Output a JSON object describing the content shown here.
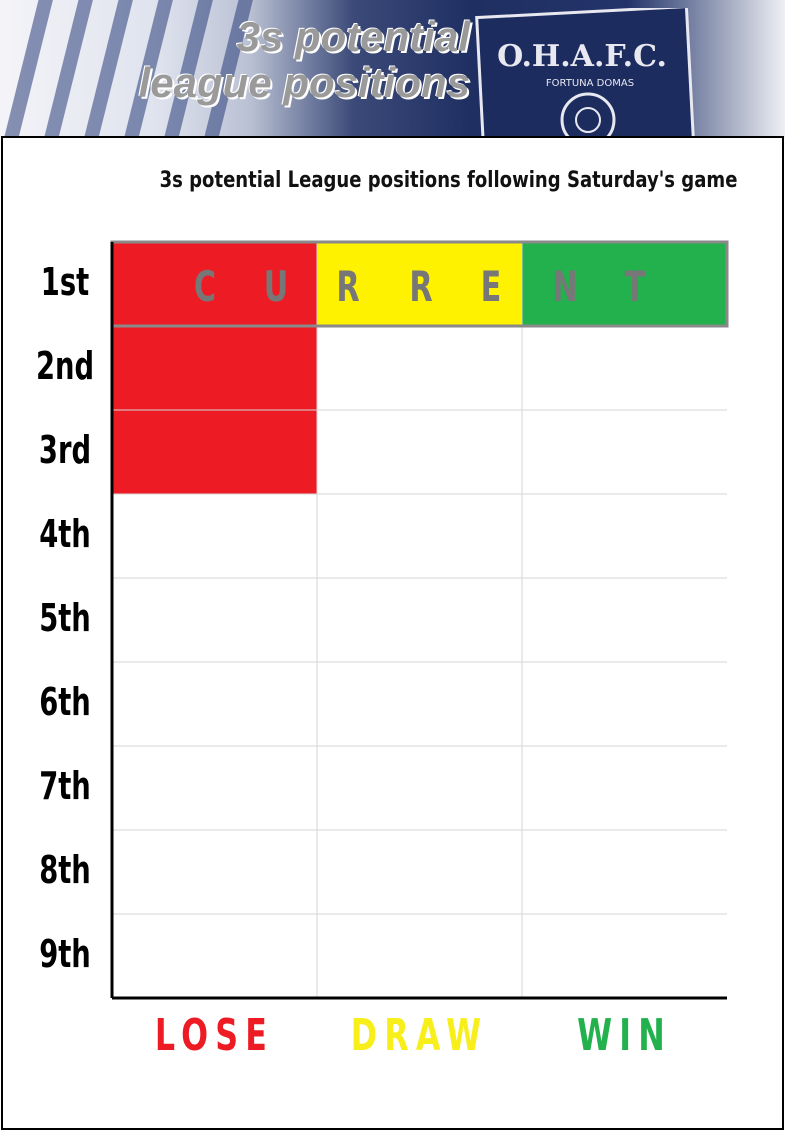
{
  "banner": {
    "title_line1": "3s potential",
    "title_line2": "league positions",
    "crest_text": "O.H.A.F.C.",
    "crest_motto": "FORTUNA DOMAS"
  },
  "chart_data": {
    "type": "table",
    "title": "3s potential League positions following Saturday's game",
    "rows": [
      "1st",
      "2nd",
      "3rd",
      "4th",
      "5th",
      "6th",
      "7th",
      "8th",
      "9th"
    ],
    "columns": [
      "LOSE",
      "DRAW",
      "WIN"
    ],
    "column_colors": [
      "#ed1c24",
      "#fff200",
      "#22b14c"
    ],
    "current_label": "CURRENT",
    "current_row": "1st",
    "possible_positions": {
      "LOSE": [
        "1st",
        "2nd",
        "3rd"
      ],
      "DRAW": [
        "1st"
      ],
      "WIN": [
        "1st"
      ]
    }
  }
}
